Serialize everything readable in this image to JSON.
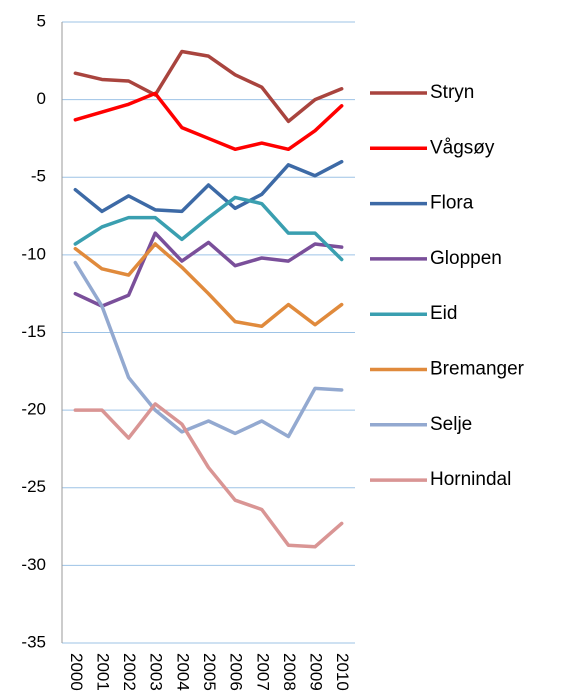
{
  "chart_data": {
    "type": "line",
    "categories": [
      "2000",
      "2001",
      "2002",
      "2003",
      "2004",
      "2005",
      "2006",
      "2007",
      "2008",
      "2009",
      "2010"
    ],
    "series": [
      {
        "name": "Stryn",
        "color": "#a9443e",
        "values": [
          1.7,
          1.3,
          1.2,
          0.3,
          3.1,
          2.8,
          1.6,
          0.8,
          -1.4,
          0.0,
          0.7
        ]
      },
      {
        "name": "Vågsøy",
        "color": "#ff0000",
        "values": [
          -1.3,
          -0.8,
          -0.3,
          0.4,
          -1.8,
          -2.5,
          -3.2,
          -2.8,
          -3.2,
          -2.0,
          -0.4
        ]
      },
      {
        "name": "Flora",
        "color": "#3d6aa6",
        "values": [
          -5.8,
          -7.2,
          -6.2,
          -7.1,
          -7.2,
          -5.5,
          -7.0,
          -6.1,
          -4.2,
          -4.9,
          -4.0
        ]
      },
      {
        "name": "Gloppen",
        "color": "#7a4f9a",
        "values": [
          -12.5,
          -13.3,
          -12.6,
          -8.6,
          -10.4,
          -9.2,
          -10.7,
          -10.2,
          -10.4,
          -9.3,
          -9.5
        ]
      },
      {
        "name": "Eid",
        "color": "#3a9fb0",
        "values": [
          -9.3,
          -8.2,
          -7.6,
          -7.6,
          -9.0,
          -7.6,
          -6.3,
          -6.7,
          -8.6,
          -8.6,
          -10.3
        ]
      },
      {
        "name": "Bremanger",
        "color": "#e08a3c",
        "values": [
          -9.6,
          -10.9,
          -11.3,
          -9.3,
          -10.8,
          -12.5,
          -14.3,
          -14.6,
          -13.2,
          -14.5,
          -13.2
        ]
      },
      {
        "name": "Selje",
        "color": "#93a9d0",
        "values": [
          -10.5,
          -13.3,
          -17.9,
          -20.0,
          -21.4,
          -20.7,
          -21.5,
          -20.7,
          -21.7,
          -18.6,
          -18.7
        ]
      },
      {
        "name": "Hornindal",
        "color": "#d99594",
        "values": [
          -20.0,
          -20.0,
          -21.8,
          -19.6,
          -20.9,
          -23.7,
          -25.8,
          -26.4,
          -28.7,
          -28.8,
          -27.3
        ]
      }
    ],
    "ylim": [
      -35,
      5
    ],
    "yticks": [
      -35,
      -30,
      -25,
      -20,
      -15,
      -10,
      -5,
      0,
      5
    ],
    "grid": true,
    "legend": "right"
  }
}
